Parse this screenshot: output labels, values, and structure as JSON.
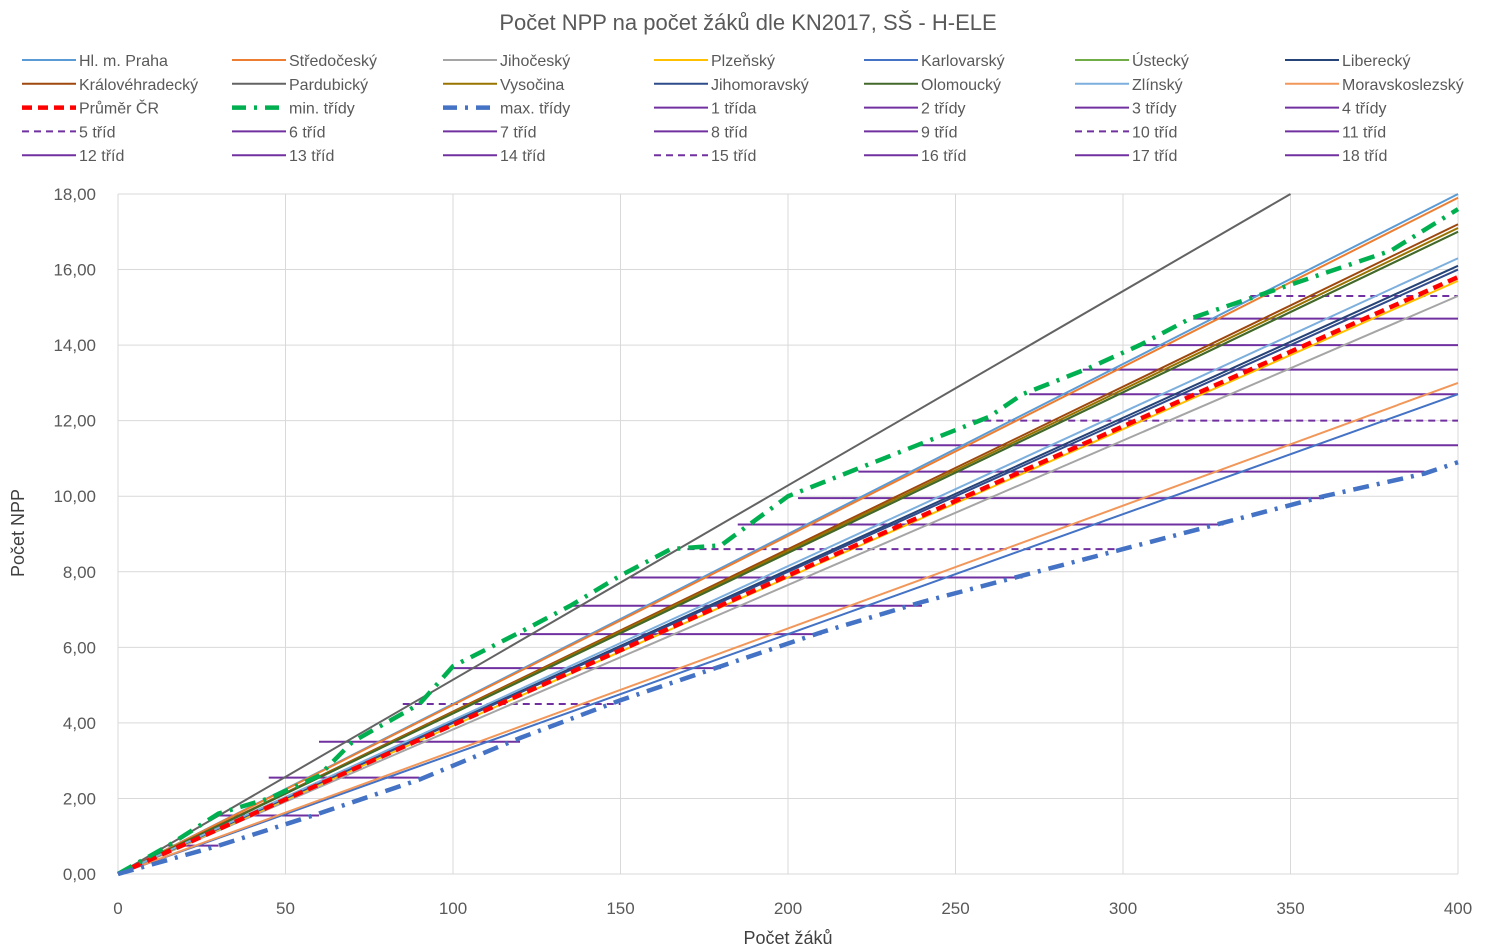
{
  "chart_data": {
    "type": "line",
    "title": "Počet NPP na počet žáků dle KN2017, SŠ - H-ELE",
    "xlabel": "Počet žáků",
    "ylabel": "Počet NPP",
    "xlim": [
      0,
      400
    ],
    "ylim": [
      0,
      18
    ],
    "x_ticks": [
      "0",
      "50",
      "100",
      "150",
      "200",
      "250",
      "300",
      "350",
      "400"
    ],
    "y_ticks": [
      "0,00",
      "2,00",
      "4,00",
      "6,00",
      "8,00",
      "10,00",
      "12,00",
      "14,00",
      "16,00",
      "18,00"
    ],
    "grid": true,
    "legend_position": "top",
    "series": [
      {
        "name": "Hl. m. Praha",
        "color": "#5b9bd5",
        "style": "solid",
        "x": [
          0,
          400
        ],
        "y": [
          0,
          18.0
        ]
      },
      {
        "name": "Středočeský",
        "color": "#ed7d31",
        "style": "solid",
        "x": [
          0,
          400
        ],
        "y": [
          0,
          17.9
        ]
      },
      {
        "name": "Jihočeský",
        "color": "#a5a5a5",
        "style": "solid",
        "x": [
          0,
          400
        ],
        "y": [
          0,
          15.3
        ]
      },
      {
        "name": "Plzeňský",
        "color": "#ffc000",
        "style": "solid",
        "x": [
          0,
          400
        ],
        "y": [
          0,
          15.7
        ]
      },
      {
        "name": "Karlovarský",
        "color": "#4472c4",
        "style": "solid",
        "x": [
          0,
          400
        ],
        "y": [
          0,
          12.7
        ]
      },
      {
        "name": "Ústecký",
        "color": "#70ad47",
        "style": "solid",
        "x": [
          0,
          400
        ],
        "y": [
          0,
          17.0
        ]
      },
      {
        "name": "Liberecký",
        "color": "#264478",
        "style": "solid",
        "x": [
          0,
          400
        ],
        "y": [
          0,
          16.1
        ]
      },
      {
        "name": "Královéhradecký",
        "color": "#9e480e",
        "style": "solid",
        "x": [
          0,
          400
        ],
        "y": [
          0,
          17.2
        ]
      },
      {
        "name": "Pardubický",
        "color": "#636363",
        "style": "solid",
        "x": [
          0,
          350
        ],
        "y": [
          0,
          18.0
        ]
      },
      {
        "name": "Vysočina",
        "color": "#997300",
        "style": "solid",
        "x": [
          0,
          400
        ],
        "y": [
          0,
          17.1
        ]
      },
      {
        "name": "Jihomoravský",
        "color": "#2f4b8a",
        "style": "solid",
        "x": [
          0,
          400
        ],
        "y": [
          0,
          16.0
        ]
      },
      {
        "name": "Olomoucký",
        "color": "#43682b",
        "style": "solid",
        "x": [
          0,
          400
        ],
        "y": [
          0,
          17.0
        ]
      },
      {
        "name": "Zlínský",
        "color": "#7cafdd",
        "style": "solid",
        "x": [
          0,
          400
        ],
        "y": [
          0,
          16.3
        ]
      },
      {
        "name": "Moravskoslezský",
        "color": "#f1975a",
        "style": "solid",
        "x": [
          0,
          400
        ],
        "y": [
          0,
          13.0
        ]
      },
      {
        "name": "Průměr ČR",
        "color": "#ff0000",
        "style": "dashed",
        "x": [
          0,
          400
        ],
        "y": [
          0,
          15.8
        ]
      },
      {
        "name": "min. třídy",
        "color": "#00b050",
        "style": "dashdot",
        "x": [
          0,
          15,
          30,
          45,
          60,
          70,
          90,
          100,
          120,
          135,
          150,
          165,
          180,
          200,
          220,
          240,
          260,
          270,
          290,
          305,
          320,
          340,
          360,
          380,
          400
        ],
        "y": [
          0,
          0.75,
          1.6,
          2.0,
          2.6,
          3.5,
          4.5,
          5.5,
          6.4,
          7.1,
          7.9,
          8.6,
          8.7,
          10.0,
          10.7,
          11.4,
          12.1,
          12.7,
          13.4,
          14.0,
          14.7,
          15.3,
          15.9,
          16.5,
          17.6
        ]
      },
      {
        "name": "max. třídy",
        "color": "#4472c4",
        "style": "dashdot",
        "x": [
          0,
          30,
          60,
          90,
          120,
          150,
          180,
          210,
          240,
          270,
          300,
          330,
          360,
          390,
          400
        ],
        "y": [
          0,
          0.75,
          1.6,
          2.5,
          3.6,
          4.6,
          5.5,
          6.4,
          7.2,
          7.9,
          8.6,
          9.3,
          10.0,
          10.6,
          10.9
        ]
      }
    ],
    "class_segments": [
      {
        "name": "1 třída",
        "color": "#7030a0",
        "style": "solid",
        "y": 0.75,
        "x": [
          15,
          30
        ]
      },
      {
        "name": "2 třídy",
        "color": "#7030a0",
        "style": "solid",
        "y": 1.55,
        "x": [
          30,
          60
        ]
      },
      {
        "name": "3 třídy",
        "color": "#7030a0",
        "style": "solid",
        "y": 2.55,
        "x": [
          45,
          90
        ]
      },
      {
        "name": "4 třídy",
        "color": "#7030a0",
        "style": "solid",
        "y": 3.5,
        "x": [
          60,
          120
        ]
      },
      {
        "name": "5 tříd",
        "color": "#7030a0",
        "style": "dashed",
        "y": 4.5,
        "x": [
          85,
          150
        ]
      },
      {
        "name": "6 tříd",
        "color": "#7030a0",
        "style": "solid",
        "y": 5.45,
        "x": [
          100,
          180
        ]
      },
      {
        "name": "7 tříd",
        "color": "#7030a0",
        "style": "solid",
        "y": 6.35,
        "x": [
          120,
          210
        ]
      },
      {
        "name": "8 tříd",
        "color": "#7030a0",
        "style": "solid",
        "y": 7.1,
        "x": [
          135,
          240
        ]
      },
      {
        "name": "9 tříd",
        "color": "#7030a0",
        "style": "solid",
        "y": 7.85,
        "x": [
          153,
          270
        ]
      },
      {
        "name": "10 tříd",
        "color": "#7030a0",
        "style": "dashed",
        "y": 8.6,
        "x": [
          170,
          300
        ]
      },
      {
        "name": "11 tříd",
        "color": "#7030a0",
        "style": "solid",
        "y": 9.25,
        "x": [
          185,
          330
        ]
      },
      {
        "name": "12 tříd",
        "color": "#7030a0",
        "style": "solid",
        "y": 9.95,
        "x": [
          203,
          360
        ]
      },
      {
        "name": "13 tříd",
        "color": "#7030a0",
        "style": "solid",
        "y": 10.65,
        "x": [
          221,
          390
        ]
      },
      {
        "name": "14 tříd",
        "color": "#7030a0",
        "style": "solid",
        "y": 11.35,
        "x": [
          238,
          400
        ]
      },
      {
        "name": "15 tříd",
        "color": "#7030a0",
        "style": "dashed",
        "y": 12.0,
        "x": [
          255,
          400
        ]
      },
      {
        "name": "16 tříd",
        "color": "#7030a0",
        "style": "solid",
        "y": 12.7,
        "x": [
          272,
          400
        ]
      },
      {
        "name": "17 tříd",
        "color": "#7030a0",
        "style": "solid",
        "y": 13.35,
        "x": [
          288,
          400
        ]
      },
      {
        "name": "18 tříd",
        "color": "#7030a0",
        "style": "solid",
        "y": 14.0,
        "x": [
          305,
          400
        ]
      },
      {
        "name": "",
        "color": "#7030a0",
        "style": "solid",
        "y": 14.7,
        "x": [
          321,
          400
        ]
      },
      {
        "name": "",
        "color": "#7030a0",
        "style": "dashed",
        "y": 15.3,
        "x": [
          338,
          400
        ]
      }
    ]
  }
}
